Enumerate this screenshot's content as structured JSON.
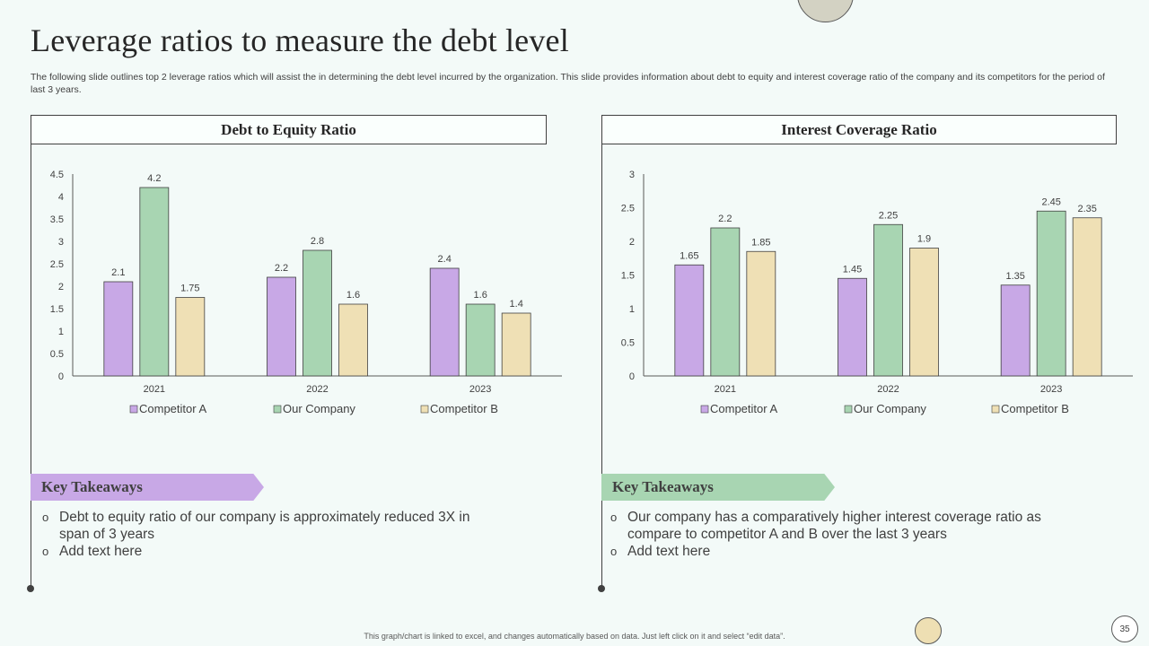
{
  "page": {
    "title": "Leverage ratios to measure the debt level",
    "subtitle": "The following slide outlines top 2 leverage ratios which will assist the in determining the debt level incurred by the organization. This slide provides information about debt to equity and interest coverage ratio of the company and its competitors for the period of last 3 years.",
    "footnote": "This graph/chart is linked to excel, and changes automatically based on data. Just left click on it and select “edit data”.",
    "page_number": "35"
  },
  "colors": {
    "competitor_a": "#c8a8e6",
    "our_company": "#a8d5b2",
    "competitor_b": "#efe0b5",
    "bar_outline": "#404040",
    "banner_left": "#c8a8e6",
    "banner_right": "#a8d5b2"
  },
  "chart_data": [
    {
      "type": "bar",
      "title": "Debt to Equity Ratio",
      "categories": [
        "2021",
        "2022",
        "2023"
      ],
      "series": [
        {
          "name": "Competitor A",
          "values": [
            2.1,
            2.2,
            2.4
          ],
          "labels": [
            "2.1",
            "2.2",
            "2.4"
          ]
        },
        {
          "name": "Our Company",
          "values": [
            4.2,
            2.8,
            1.6
          ],
          "labels": [
            "4.2",
            "2.8",
            "1.6"
          ]
        },
        {
          "name": "Competitor B",
          "values": [
            1.75,
            1.6,
            1.4
          ],
          "labels": [
            "1.75",
            "1.6",
            "1.4"
          ]
        }
      ],
      "ylim": [
        0,
        4.5
      ],
      "yticks": [
        "0",
        "0.5",
        "1",
        "1.5",
        "2",
        "2.5",
        "3",
        "3.5",
        "4",
        "4.5"
      ],
      "xlabel": "",
      "ylabel": "",
      "grid": false,
      "legend": "bottom"
    },
    {
      "type": "bar",
      "title": "Interest Coverage Ratio",
      "categories": [
        "2021",
        "2022",
        "2023"
      ],
      "series": [
        {
          "name": "Competitor A",
          "values": [
            1.65,
            1.45,
            1.35
          ],
          "labels": [
            "1.65",
            "1.45",
            "1.35"
          ]
        },
        {
          "name": "Our Company",
          "values": [
            2.2,
            2.25,
            2.45
          ],
          "labels": [
            "2.2",
            "2.25",
            "2.45"
          ]
        },
        {
          "name": "Competitor B",
          "values": [
            1.85,
            1.9,
            2.35
          ],
          "labels": [
            "1.85",
            "1.9",
            "2.35"
          ]
        }
      ],
      "ylim": [
        0,
        3
      ],
      "yticks": [
        "0",
        "0.5",
        "1",
        "1.5",
        "2",
        "2.5",
        "3"
      ],
      "xlabel": "",
      "ylabel": "",
      "grid": false,
      "legend": "bottom"
    }
  ],
  "takeaways": [
    {
      "heading": "Key Takeaways",
      "items": [
        "Debt to equity ratio of our company is approximately reduced 3X in span of 3 years",
        "Add text here"
      ]
    },
    {
      "heading": "Key Takeaways",
      "items": [
        "Our company has a comparatively higher interest coverage ratio as compare to competitor A and B over the last 3 years",
        "Add text here"
      ]
    }
  ]
}
